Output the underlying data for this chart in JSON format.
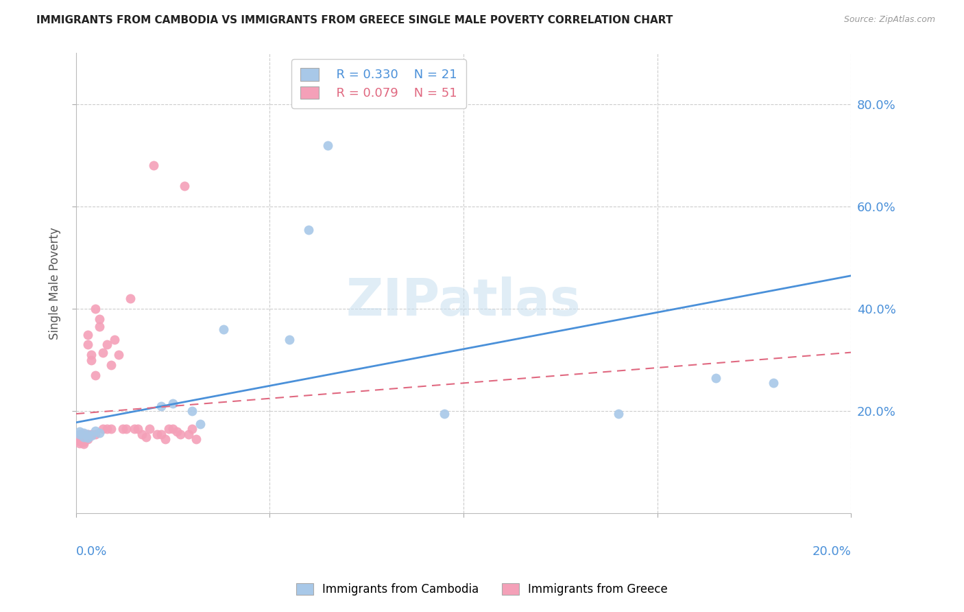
{
  "title": "IMMIGRANTS FROM CAMBODIA VS IMMIGRANTS FROM GREECE SINGLE MALE POVERTY CORRELATION CHART",
  "source": "Source: ZipAtlas.com",
  "ylabel": "Single Male Poverty",
  "right_yticks": [
    "80.0%",
    "60.0%",
    "40.0%",
    "20.0%"
  ],
  "right_ytick_vals": [
    0.8,
    0.6,
    0.4,
    0.2
  ],
  "xlim": [
    0.0,
    0.2
  ],
  "ylim": [
    0.0,
    0.9
  ],
  "legend_R1": "R = 0.330",
  "legend_N1": "N = 21",
  "legend_R2": "R = 0.079",
  "legend_N2": "N = 51",
  "color_cambodia": "#a8c8e8",
  "color_greece": "#f4a0b8",
  "line_color_cambodia": "#4a90d9",
  "line_color_greece": "#e06880",
  "watermark": "ZIPatlas",
  "cambodia_x": [
    0.001,
    0.001,
    0.002,
    0.002,
    0.003,
    0.003,
    0.004,
    0.005,
    0.006,
    0.022,
    0.025,
    0.03,
    0.032,
    0.038,
    0.055,
    0.06,
    0.065,
    0.095,
    0.14,
    0.165,
    0.18
  ],
  "cambodia_y": [
    0.155,
    0.16,
    0.15,
    0.158,
    0.155,
    0.148,
    0.152,
    0.162,
    0.158,
    0.21,
    0.215,
    0.2,
    0.175,
    0.36,
    0.34,
    0.555,
    0.72,
    0.195,
    0.195,
    0.265,
    0.255
  ],
  "greece_x": [
    0.001,
    0.001,
    0.001,
    0.001,
    0.001,
    0.001,
    0.002,
    0.002,
    0.002,
    0.002,
    0.002,
    0.003,
    0.003,
    0.003,
    0.003,
    0.004,
    0.004,
    0.004,
    0.005,
    0.005,
    0.005,
    0.006,
    0.006,
    0.007,
    0.007,
    0.008,
    0.008,
    0.009,
    0.009,
    0.01,
    0.011,
    0.012,
    0.013,
    0.014,
    0.015,
    0.016,
    0.017,
    0.018,
    0.019,
    0.02,
    0.021,
    0.022,
    0.023,
    0.024,
    0.025,
    0.026,
    0.027,
    0.028,
    0.029,
    0.03,
    0.031
  ],
  "greece_y": [
    0.155,
    0.152,
    0.148,
    0.145,
    0.142,
    0.138,
    0.155,
    0.15,
    0.145,
    0.14,
    0.136,
    0.35,
    0.33,
    0.155,
    0.145,
    0.3,
    0.31,
    0.155,
    0.27,
    0.4,
    0.155,
    0.38,
    0.365,
    0.315,
    0.165,
    0.165,
    0.33,
    0.165,
    0.29,
    0.34,
    0.31,
    0.165,
    0.165,
    0.42,
    0.165,
    0.165,
    0.155,
    0.15,
    0.165,
    0.68,
    0.155,
    0.155,
    0.145,
    0.165,
    0.165,
    0.16,
    0.155,
    0.64,
    0.155,
    0.165,
    0.145
  ],
  "cam_line_x": [
    0.0,
    0.2
  ],
  "cam_line_y": [
    0.178,
    0.465
  ],
  "gre_line_x": [
    0.0,
    0.2
  ],
  "gre_line_y": [
    0.195,
    0.315
  ]
}
